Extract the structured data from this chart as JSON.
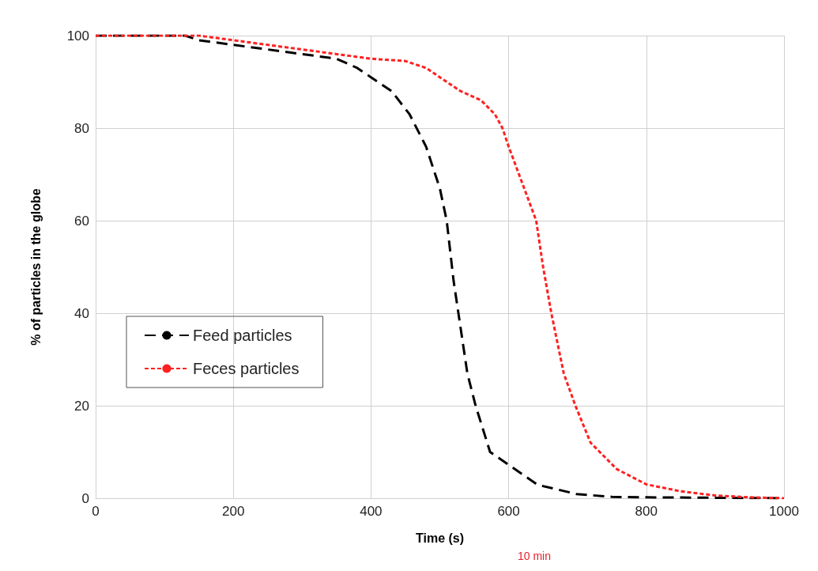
{
  "chart_data": {
    "type": "line",
    "xlabel": "Time (s)",
    "ylabel": "% of particles in the globe",
    "annotations": [
      "10 min"
    ],
    "xlim": [
      0,
      1000
    ],
    "xticks": [
      0,
      200,
      400,
      600,
      800,
      1000
    ],
    "ylim": [
      0,
      100
    ],
    "yticks": [
      0,
      20,
      40,
      60,
      80,
      100
    ],
    "grid": true,
    "legend": "left",
    "series": [
      {
        "name": "Feed particles",
        "color": "#000000",
        "line_style": "dashed",
        "x": [
          0,
          130,
          150,
          200,
          250,
          300,
          350,
          380,
          400,
          430,
          456,
          480,
          500,
          510,
          520,
          527,
          540,
          552,
          573,
          604,
          642,
          699,
          750,
          800,
          900,
          1000
        ],
        "values": [
          100,
          100,
          99,
          98,
          97,
          96,
          95,
          93,
          91,
          88,
          83,
          76,
          67,
          60,
          47,
          40,
          27,
          20,
          10,
          6.8,
          2.9,
          0.9,
          0.3,
          0.2,
          0.1,
          0
        ]
      },
      {
        "name": "Feces particles",
        "color": "#ff2020",
        "line_style": "dotted",
        "x": [
          0,
          150,
          200,
          300,
          350,
          400,
          450,
          480,
          500,
          530,
          560,
          580,
          591,
          600,
          620,
          640,
          650,
          662,
          680,
          697,
          719,
          757,
          800,
          850,
          900,
          950,
          1000
        ],
        "values": [
          100,
          100,
          99,
          97,
          96,
          95,
          94.5,
          93,
          91,
          88,
          86,
          83,
          80,
          76,
          68,
          60,
          50,
          40,
          27,
          20,
          12,
          6.3,
          3,
          1.5,
          0.6,
          0.2,
          0
        ]
      }
    ]
  }
}
